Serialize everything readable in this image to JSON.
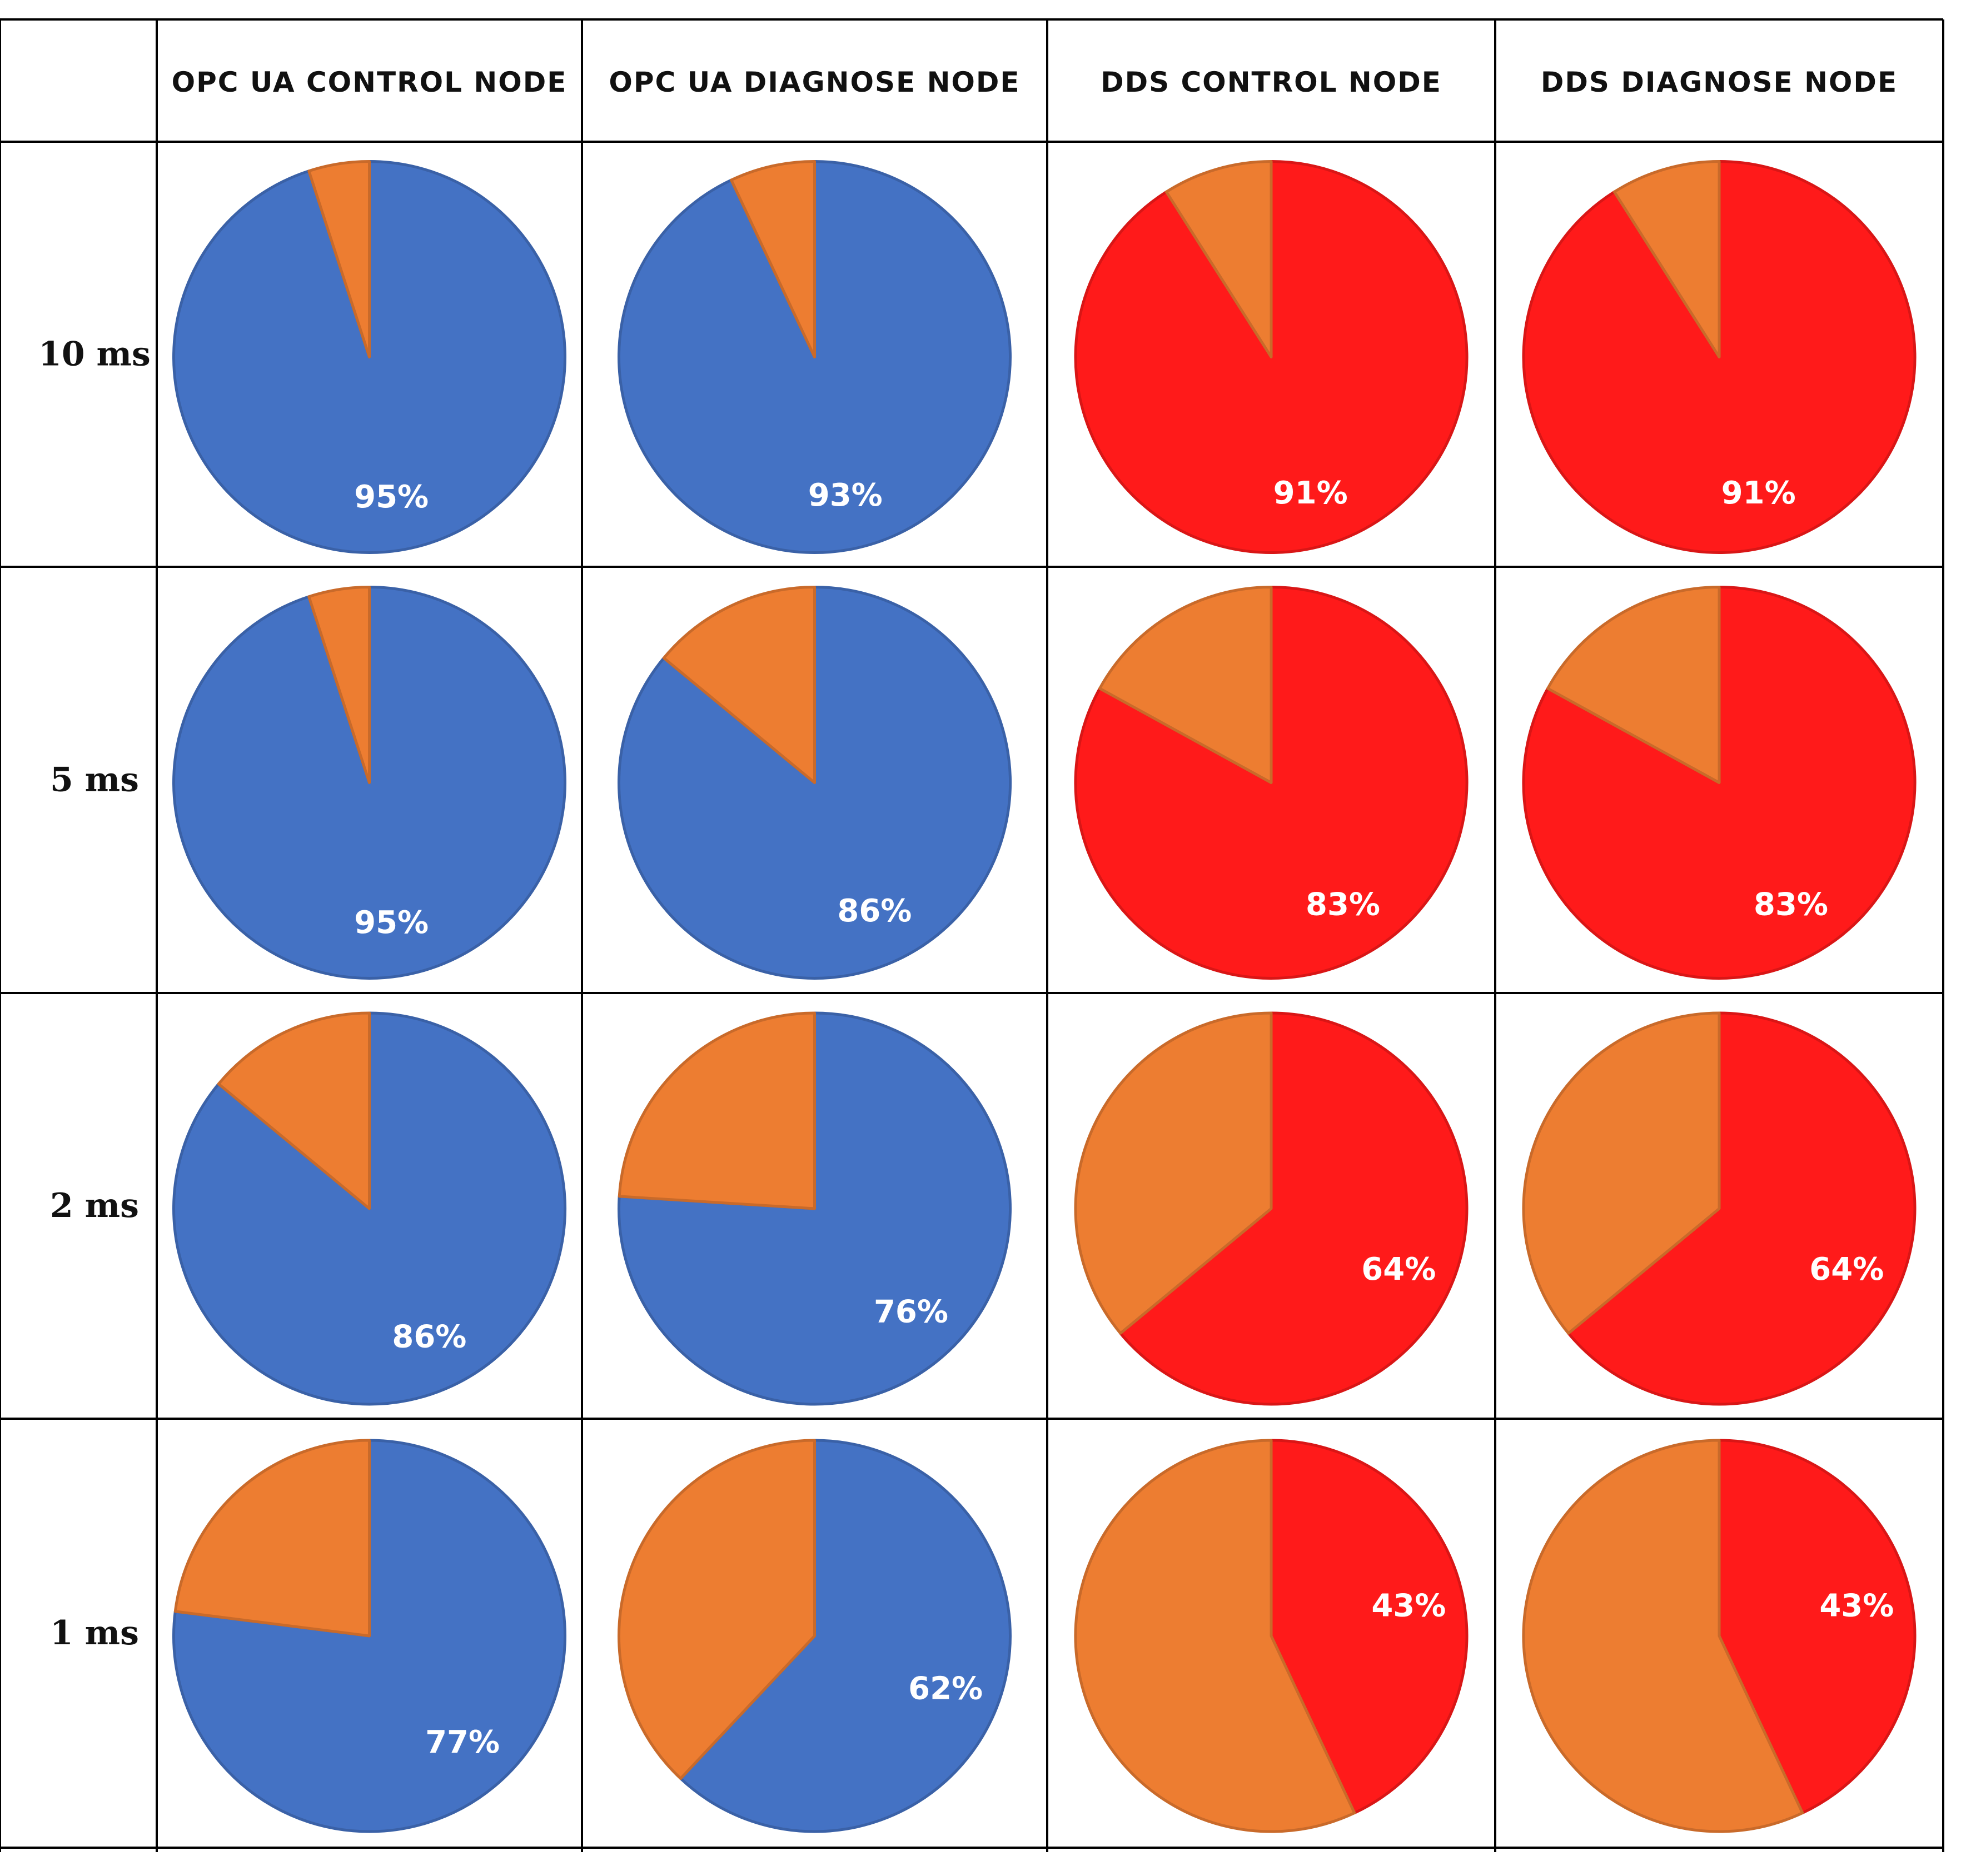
{
  "colors": {
    "opc": "#4472C4",
    "dds": "#FF1A1A",
    "remainder": "#ED7D31",
    "label": "#FFFFFF",
    "grid": "#000000"
  },
  "chart_data": {
    "type": "pie",
    "title": "",
    "columns": [
      {
        "label": "OPC UA CONTROL NODE",
        "color_key": "opc"
      },
      {
        "label": "OPC UA DIAGNOSE NODE",
        "color_key": "opc"
      },
      {
        "label": "DDS CONTROL NODE",
        "color_key": "dds"
      },
      {
        "label": "DDS DIAGNOSE NODE",
        "color_key": "dds"
      }
    ],
    "rows": [
      {
        "label": "10 ms",
        "values": [
          95,
          93,
          91,
          91
        ],
        "display": [
          "95%",
          "93%",
          "91%",
          "91%"
        ]
      },
      {
        "label": "5 ms",
        "values": [
          95,
          86,
          83,
          83
        ],
        "display": [
          "95%",
          "86%",
          "83%",
          "83%"
        ]
      },
      {
        "label": "2 ms",
        "values": [
          86,
          76,
          64,
          64
        ],
        "display": [
          "86%",
          "76%",
          "64%",
          "64%"
        ]
      },
      {
        "label": "1 ms",
        "values": [
          77,
          62,
          43,
          43
        ],
        "display": [
          "77%",
          "62%",
          "43%",
          "43%"
        ]
      }
    ]
  }
}
